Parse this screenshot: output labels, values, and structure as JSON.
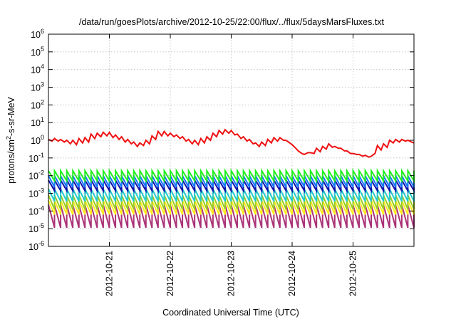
{
  "chart_data": {
    "type": "line",
    "title": "/data/run/goesPlots/archive/2012-10-25/22:00/flux/../flux/5daysMarsFluxes.txt",
    "xlabel": "Coordinated Universal Time (UTC)",
    "ylabel": {
      "pre": "protons/cm",
      "sup": "2",
      "post": "-s-sr-MeV"
    },
    "yscale": "log",
    "ylim_exp": [
      -6,
      6
    ],
    "xlim_days": [
      0,
      6.0
    ],
    "x_ticks": [
      {
        "label": "2012-10-21",
        "day": 1.0
      },
      {
        "label": "2012-10-22",
        "day": 2.0
      },
      {
        "label": "2012-10-23",
        "day": 3.0
      },
      {
        "label": "2012-10-24",
        "day": 4.0
      },
      {
        "label": "2012-10-25",
        "day": 5.0
      }
    ],
    "y_ticks": [
      {
        "base": "10",
        "exp": "6",
        "value": 6
      },
      {
        "base": "10",
        "exp": "5",
        "value": 5
      },
      {
        "base": "10",
        "exp": "4",
        "value": 4
      },
      {
        "base": "10",
        "exp": "3",
        "value": 3
      },
      {
        "base": "10",
        "exp": "2",
        "value": 2
      },
      {
        "base": "10",
        "exp": "1",
        "value": 1
      },
      {
        "base": "10",
        "exp": "0",
        "value": 0
      },
      {
        "base": "10",
        "exp": "-1",
        "value": -1
      },
      {
        "base": "10",
        "exp": "-2",
        "value": -2
      },
      {
        "base": "10",
        "exp": "-3",
        "value": -3
      },
      {
        "base": "10",
        "exp": "-4",
        "value": -4
      },
      {
        "base": "10",
        "exp": "-5",
        "value": -5
      },
      {
        "base": "10",
        "exp": "-6",
        "value": -6
      }
    ],
    "grid": true,
    "series": [
      {
        "color": "#ee1111",
        "kind": "smooth",
        "points": [
          [
            0.0,
            0.05
          ],
          [
            0.06,
            -0.05
          ],
          [
            0.1,
            0.1
          ],
          [
            0.16,
            -0.05
          ],
          [
            0.2,
            0.05
          ],
          [
            0.26,
            -0.1
          ],
          [
            0.3,
            0.0
          ],
          [
            0.36,
            -0.2
          ],
          [
            0.4,
            0.0
          ],
          [
            0.46,
            -0.25
          ],
          [
            0.5,
            0.1
          ],
          [
            0.56,
            -0.15
          ],
          [
            0.6,
            0.15
          ],
          [
            0.66,
            -0.1
          ],
          [
            0.7,
            0.35
          ],
          [
            0.76,
            0.1
          ],
          [
            0.8,
            0.4
          ],
          [
            0.86,
            0.2
          ],
          [
            0.9,
            0.45
          ],
          [
            0.96,
            0.25
          ],
          [
            1.0,
            0.45
          ],
          [
            1.06,
            0.15
          ],
          [
            1.1,
            0.3
          ],
          [
            1.16,
            0.05
          ],
          [
            1.2,
            0.2
          ],
          [
            1.26,
            -0.1
          ],
          [
            1.3,
            0.05
          ],
          [
            1.36,
            -0.2
          ],
          [
            1.4,
            -0.1
          ],
          [
            1.46,
            -0.35
          ],
          [
            1.5,
            -0.15
          ],
          [
            1.56,
            -0.3
          ],
          [
            1.6,
            0.0
          ],
          [
            1.66,
            -0.2
          ],
          [
            1.7,
            0.25
          ],
          [
            1.76,
            0.05
          ],
          [
            1.8,
            0.5
          ],
          [
            1.86,
            0.25
          ],
          [
            1.9,
            0.5
          ],
          [
            1.96,
            0.25
          ],
          [
            2.0,
            0.4
          ],
          [
            2.06,
            0.2
          ],
          [
            2.1,
            0.3
          ],
          [
            2.16,
            0.1
          ],
          [
            2.2,
            0.2
          ],
          [
            2.26,
            -0.05
          ],
          [
            2.3,
            0.05
          ],
          [
            2.36,
            -0.2
          ],
          [
            2.4,
            0.0
          ],
          [
            2.46,
            -0.25
          ],
          [
            2.5,
            0.1
          ],
          [
            2.56,
            -0.15
          ],
          [
            2.6,
            0.2
          ],
          [
            2.66,
            0.0
          ],
          [
            2.7,
            0.4
          ],
          [
            2.76,
            0.2
          ],
          [
            2.8,
            0.55
          ],
          [
            2.86,
            0.35
          ],
          [
            2.9,
            0.6
          ],
          [
            2.96,
            0.4
          ],
          [
            3.0,
            0.55
          ],
          [
            3.06,
            0.3
          ],
          [
            3.1,
            0.35
          ],
          [
            3.16,
            0.1
          ],
          [
            3.2,
            0.2
          ],
          [
            3.26,
            -0.05
          ],
          [
            3.3,
            0.05
          ],
          [
            3.36,
            -0.2
          ],
          [
            3.4,
            -0.15
          ],
          [
            3.46,
            -0.35
          ],
          [
            3.5,
            -0.1
          ],
          [
            3.56,
            -0.3
          ],
          [
            3.6,
            0.05
          ],
          [
            3.66,
            -0.15
          ],
          [
            3.7,
            0.15
          ],
          [
            3.76,
            -0.05
          ],
          [
            3.8,
            0.15
          ],
          [
            3.86,
            0.0
          ],
          [
            3.9,
            0.0
          ],
          [
            3.96,
            -0.15
          ],
          [
            4.0,
            -0.25
          ],
          [
            4.06,
            -0.45
          ],
          [
            4.1,
            -0.6
          ],
          [
            4.16,
            -0.75
          ],
          [
            4.2,
            -0.8
          ],
          [
            4.26,
            -0.7
          ],
          [
            4.3,
            -0.7
          ],
          [
            4.36,
            -0.75
          ],
          [
            4.4,
            -0.45
          ],
          [
            4.46,
            -0.65
          ],
          [
            4.5,
            -0.35
          ],
          [
            4.56,
            -0.5
          ],
          [
            4.6,
            -0.2
          ],
          [
            4.66,
            -0.4
          ],
          [
            4.7,
            -0.35
          ],
          [
            4.76,
            -0.45
          ],
          [
            4.8,
            -0.45
          ],
          [
            4.86,
            -0.6
          ],
          [
            4.9,
            -0.6
          ],
          [
            4.96,
            -0.75
          ],
          [
            5.0,
            -0.75
          ],
          [
            5.06,
            -0.8
          ],
          [
            5.1,
            -0.8
          ],
          [
            5.16,
            -0.9
          ],
          [
            5.2,
            -0.85
          ],
          [
            5.26,
            -0.95
          ],
          [
            5.3,
            -0.9
          ],
          [
            5.36,
            -0.75
          ],
          [
            5.4,
            -0.3
          ],
          [
            5.46,
            -0.55
          ],
          [
            5.5,
            -0.2
          ],
          [
            5.56,
            -0.4
          ],
          [
            5.6,
            0.0
          ],
          [
            5.66,
            -0.15
          ],
          [
            5.7,
            0.05
          ],
          [
            5.76,
            -0.1
          ],
          [
            5.8,
            0.05
          ],
          [
            5.86,
            -0.05
          ],
          [
            5.9,
            0.0
          ],
          [
            5.96,
            -0.1
          ],
          [
            6.0,
            -0.15
          ]
        ]
      },
      {
        "color": "#22ee22",
        "kind": "saw",
        "period": 0.1,
        "offset": 0.0,
        "peak": -1.72,
        "trough": -2.3
      },
      {
        "color": "#1177ff",
        "kind": "saw",
        "period": 0.1,
        "offset": 0.035,
        "peak": -2.0,
        "trough": -2.65
      },
      {
        "color": "#1111aa",
        "kind": "saw",
        "period": 0.1,
        "offset": 0.06,
        "peak": -2.25,
        "trough": -2.85
      },
      {
        "color": "#22cccc",
        "kind": "saw",
        "period": 0.1,
        "offset": 0.02,
        "peak": -2.75,
        "trough": -3.45
      },
      {
        "color": "#99cc22",
        "kind": "saw",
        "period": 0.1,
        "offset": 0.05,
        "peak": -3.1,
        "trough": -3.9
      },
      {
        "color": "#ffee22",
        "kind": "saw",
        "period": 0.1,
        "offset": 0.07,
        "peak": -3.4,
        "trough": -4.2
      },
      {
        "color": "#aa3377",
        "kind": "saw",
        "period": 0.1,
        "offset": 0.0,
        "peak": -3.65,
        "trough": -4.95
      }
    ]
  }
}
